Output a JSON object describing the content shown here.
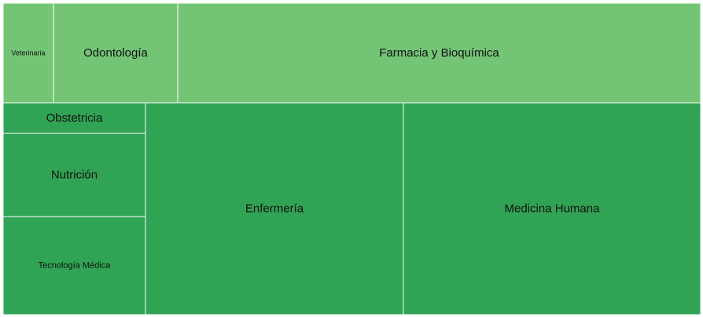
{
  "chart_data": {
    "type": "treemap",
    "title": "",
    "groups": [
      {
        "color": "#74c476",
        "items": [
          {
            "label": "Veterinaria"
          },
          {
            "label": "Odontología"
          },
          {
            "label": "Farmacia y Bioquímica"
          }
        ]
      },
      {
        "color": "#31a354",
        "items": [
          {
            "label": "Obstetricia"
          },
          {
            "label": "Nutrición"
          },
          {
            "label": "Tecnología Médica"
          },
          {
            "label": "Enfermería"
          },
          {
            "label": "Medicina Humana"
          }
        ]
      }
    ]
  }
}
